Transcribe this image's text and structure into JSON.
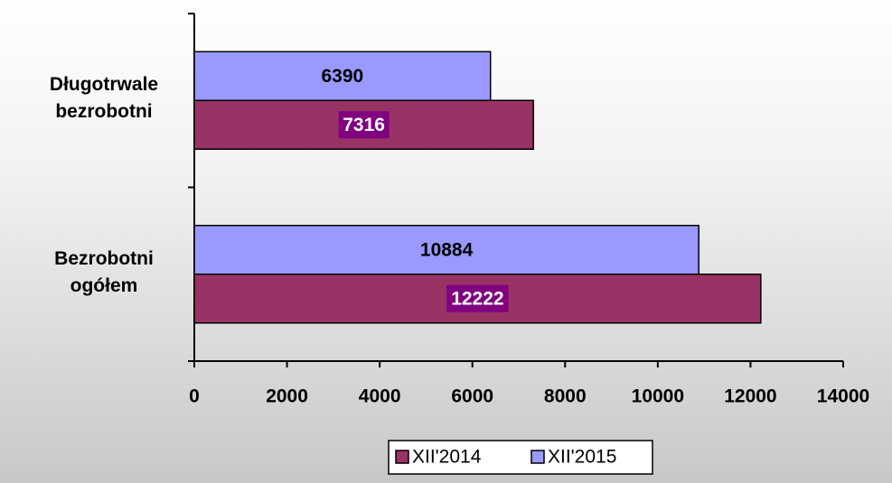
{
  "chart_data": {
    "type": "bar",
    "orientation": "horizontal",
    "categories": [
      "Bezrobotni ogółem",
      "Długotrwale bezrobotni"
    ],
    "series": [
      {
        "name": "XII'2014",
        "color": "#993366",
        "values": [
          12222,
          7316
        ]
      },
      {
        "name": "XII'2015",
        "color": "#9999ff",
        "values": [
          10884,
          6390
        ]
      }
    ],
    "xlim": [
      0,
      14000
    ],
    "xticks": [
      0,
      2000,
      4000,
      6000,
      8000,
      10000,
      12000,
      14000
    ],
    "legend": "bottom"
  }
}
